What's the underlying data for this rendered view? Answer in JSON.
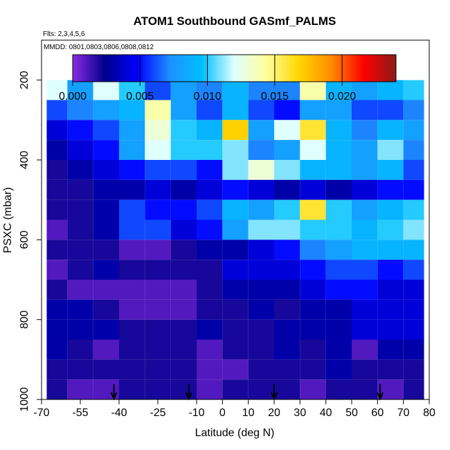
{
  "chart_data": {
    "type": "heatmap",
    "title": "ATOM1 Southbound GASmf_PALMS",
    "annotations": {
      "flights": "Flts: 2,3,4,5,6",
      "dates": "MMDD: 0801,0803,0806,0808,0812"
    },
    "xlabel": "Latitude (deg N)",
    "ylabel": "PSXC (mbar)",
    "xlim": [
      -70,
      80
    ],
    "ylim": [
      1000,
      100
    ],
    "x_ticks": [
      -70,
      -55,
      -40,
      -25,
      -10,
      0,
      10,
      20,
      30,
      40,
      50,
      60,
      70,
      80
    ],
    "x_tick_labels": [
      "-70",
      "-55",
      "-40",
      "-25",
      "-10",
      "0",
      "10",
      "20",
      "30",
      "40",
      "50",
      "60",
      "70",
      "80"
    ],
    "y_ticks": [
      200,
      400,
      600,
      800,
      1000
    ],
    "y_tick_labels": [
      "200",
      "400",
      "600",
      "800",
      "1000"
    ],
    "colorbar": {
      "range": [
        0.0,
        0.024
      ],
      "ticks": [
        0.0,
        0.005,
        0.01,
        0.015,
        0.02
      ],
      "tick_labels": [
        "0.000",
        "0.005",
        "0.010",
        "0.015",
        "0.020"
      ],
      "colors": [
        "#8a2be2",
        "#00008b",
        "#0000ff",
        "#1e90ff",
        "#00bfff",
        "#e0ffff",
        "#ffff99",
        "#ffd700",
        "#ff8c00",
        "#ff0000",
        "#8b1a1a"
      ]
    },
    "layer_pressures": [
      175,
      225,
      275,
      325,
      375,
      425,
      475,
      525,
      575,
      625,
      675,
      725,
      775,
      825,
      875,
      925,
      975
    ],
    "latitude_bins": [
      -65,
      -55,
      -45,
      -35,
      -25,
      -15,
      -5,
      5,
      15,
      25,
      35,
      45,
      55,
      65,
      75
    ],
    "values": [
      [
        null,
        null,
        null,
        null,
        0.009,
        0.01,
        0.01,
        0.01,
        0.009,
        0.011,
        0.016,
        null,
        null,
        null,
        null
      ],
      [
        0.012,
        0.008,
        0.012,
        0.01,
        0.006,
        0.008,
        0.007,
        0.009,
        0.007,
        0.007,
        0.014,
        0.009,
        0.008,
        0.009,
        0.01
      ],
      [
        0.006,
        0.007,
        0.008,
        0.009,
        0.014,
        0.008,
        0.006,
        0.009,
        0.006,
        0.005,
        0.008,
        0.008,
        0.006,
        0.006,
        0.007
      ],
      [
        0.004,
        0.005,
        0.006,
        0.008,
        0.013,
        0.01,
        0.009,
        0.017,
        0.008,
        0.012,
        0.016,
        0.009,
        0.007,
        0.009,
        0.008
      ],
      [
        0.003,
        0.004,
        0.005,
        0.008,
        0.012,
        0.01,
        0.01,
        0.011,
        0.007,
        0.008,
        0.012,
        0.009,
        0.008,
        0.011,
        0.007
      ],
      [
        0.002,
        0.003,
        0.004,
        0.005,
        0.006,
        0.006,
        0.005,
        0.011,
        0.013,
        0.011,
        0.009,
        0.009,
        0.008,
        0.009,
        0.006
      ],
      [
        0.002,
        0.002,
        0.003,
        0.003,
        0.004,
        0.003,
        0.004,
        0.005,
        0.004,
        0.003,
        0.004,
        0.003,
        0.004,
        0.005,
        0.005
      ],
      [
        0.002,
        0.002,
        0.003,
        0.006,
        0.005,
        0.005,
        0.006,
        0.009,
        0.008,
        0.01,
        0.016,
        0.01,
        0.008,
        0.009,
        0.01
      ],
      [
        0.001,
        0.002,
        0.003,
        0.006,
        0.006,
        0.004,
        0.005,
        0.008,
        0.011,
        0.011,
        0.01,
        0.01,
        0.009,
        0.01,
        0.011
      ],
      [
        0.002,
        0.002,
        0.002,
        0.001,
        0.001,
        0.002,
        0.003,
        0.003,
        0.004,
        0.005,
        0.007,
        0.008,
        0.009,
        0.009,
        0.009
      ],
      [
        0.001,
        0.002,
        0.003,
        0.002,
        0.002,
        0.002,
        0.002,
        0.004,
        0.004,
        0.004,
        0.005,
        0.006,
        0.006,
        0.005,
        0.006
      ],
      [
        0.002,
        0.001,
        0.001,
        0.001,
        0.001,
        0.001,
        0.002,
        0.003,
        0.003,
        0.003,
        0.004,
        0.005,
        0.005,
        0.004,
        0.004
      ],
      [
        0.003,
        0.003,
        0.002,
        0.001,
        0.001,
        0.001,
        0.002,
        0.002,
        0.003,
        0.002,
        0.003,
        0.003,
        0.004,
        0.004,
        0.004
      ],
      [
        0.003,
        0.003,
        0.003,
        0.002,
        0.002,
        0.002,
        0.003,
        0.002,
        0.002,
        0.003,
        0.003,
        0.003,
        0.004,
        0.004,
        0.004
      ],
      [
        0.003,
        0.002,
        0.001,
        0.002,
        0.002,
        0.002,
        0.001,
        0.002,
        0.002,
        0.003,
        0.002,
        0.003,
        0.001,
        0.003,
        0.003
      ],
      [
        0.002,
        0.002,
        0.002,
        0.002,
        0.002,
        0.002,
        0.001,
        0.001,
        0.002,
        0.002,
        0.002,
        0.003,
        0.002,
        0.002,
        0.002
      ],
      [
        0.002,
        0.001,
        0.001,
        0.002,
        0.002,
        0.002,
        0.001,
        0.002,
        0.002,
        0.002,
        0.001,
        0.002,
        0.002,
        0.001,
        0.002
      ]
    ],
    "marker_latitudes": [
      -42,
      -13,
      20,
      61
    ]
  }
}
